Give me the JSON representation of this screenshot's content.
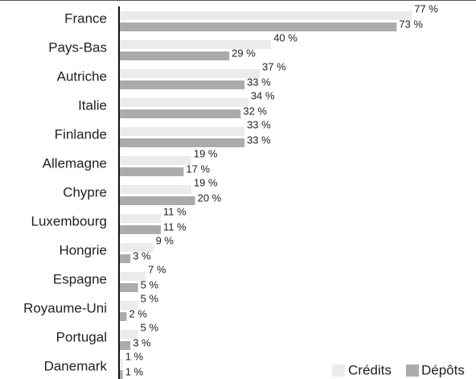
{
  "chart_data": {
    "type": "bar",
    "orientation": "horizontal",
    "categories": [
      "France",
      "Pays-Bas",
      "Autriche",
      "Italie",
      "Finlande",
      "Allemagne",
      "Chypre",
      "Luxembourg",
      "Hongrie",
      "Espagne",
      "Royaume-Uni",
      "Portugal",
      "Danemark"
    ],
    "series": [
      {
        "name": "Crédits",
        "color": "#ebebeb",
        "values": [
          77,
          40,
          37,
          34,
          33,
          19,
          19,
          11,
          9,
          7,
          5,
          5,
          1
        ],
        "value_labels": [
          "77 %",
          "40 %",
          "37 %",
          "34 %",
          "33 %",
          "19 %",
          "19 %",
          "11 %",
          "9 %",
          "7 %",
          "5 %",
          "5 %",
          "1 %"
        ]
      },
      {
        "name": "Dépôts",
        "color": "#ababab",
        "values": [
          73,
          29,
          33,
          32,
          33,
          17,
          20,
          11,
          3,
          5,
          2,
          3,
          1
        ],
        "value_labels": [
          "73 %",
          "29 %",
          "33 %",
          "32 %",
          "33 %",
          "17 %",
          "20 %",
          "11 %",
          "3 %",
          "5 %",
          "2 %",
          "3 %",
          "1 %"
        ]
      }
    ],
    "legend": "bottom-right"
  }
}
